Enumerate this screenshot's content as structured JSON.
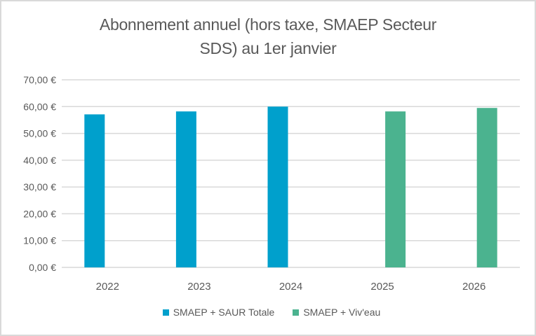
{
  "chart_data": {
    "type": "bar",
    "title": "Abonnement annuel (hors taxe, SMAEP Secteur SDS) au 1er janvier",
    "title_lines": [
      "Abonnement annuel (hors taxe, SMAEP Secteur",
      "SDS) au 1er janvier"
    ],
    "xlabel": "",
    "ylabel": "",
    "categories": [
      "2022",
      "2023",
      "2024",
      "2025",
      "2026"
    ],
    "series": [
      {
        "name": "SMAEP + SAUR Totale",
        "color": "#00A0CC",
        "values": [
          57.1,
          58.2,
          60.0,
          null,
          null
        ]
      },
      {
        "name": "SMAEP + Viv'eau",
        "color": "#4BB38F",
        "values": [
          null,
          null,
          null,
          58.2,
          59.5
        ]
      }
    ],
    "ylim": [
      0,
      70
    ],
    "yticks": [
      0,
      10,
      20,
      30,
      40,
      50,
      60,
      70
    ],
    "ytick_labels": [
      "0,00 €",
      "10,00 €",
      "20,00 €",
      "30,00 €",
      "40,00 €",
      "50,00 €",
      "60,00 €",
      "70,00 €"
    ],
    "grid": true,
    "grid_color": "#d9d9d9",
    "legend_position": "bottom"
  }
}
